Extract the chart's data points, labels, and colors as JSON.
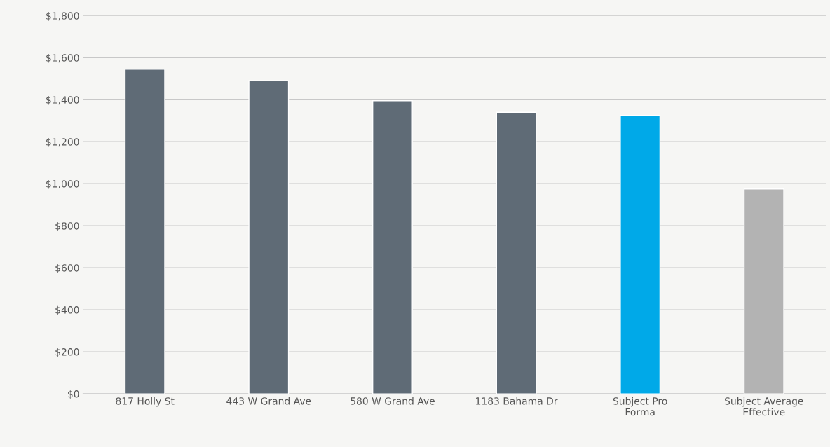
{
  "chart_data": {
    "type": "bar",
    "categories": [
      "817 Holly St",
      "443 W Grand Ave",
      "580 W Grand Ave",
      "1183 Bahama Dr",
      "Subject Pro\nForma",
      "Subject Average\nEffective"
    ],
    "values": [
      1545,
      1490,
      1395,
      1340,
      1325,
      975
    ],
    "colors": [
      "#5f6b76",
      "#5f6b76",
      "#5f6b76",
      "#5f6b76",
      "#00a9e8",
      "#b3b3b3"
    ],
    "ylim": [
      0,
      1800
    ],
    "yticks": [
      {
        "value": 0,
        "label": "$0"
      },
      {
        "value": 200,
        "label": "$200"
      },
      {
        "value": 400,
        "label": "$400"
      },
      {
        "value": 600,
        "label": "$600"
      },
      {
        "value": 800,
        "label": "$800"
      },
      {
        "value": 1000,
        "label": "$1,000"
      },
      {
        "value": 1200,
        "label": "$1,200"
      },
      {
        "value": 1400,
        "label": "$1,400"
      },
      {
        "value": 1600,
        "label": "$1,600"
      },
      {
        "value": 1800,
        "label": "$1,800"
      }
    ],
    "grid": "y",
    "legend": false
  }
}
